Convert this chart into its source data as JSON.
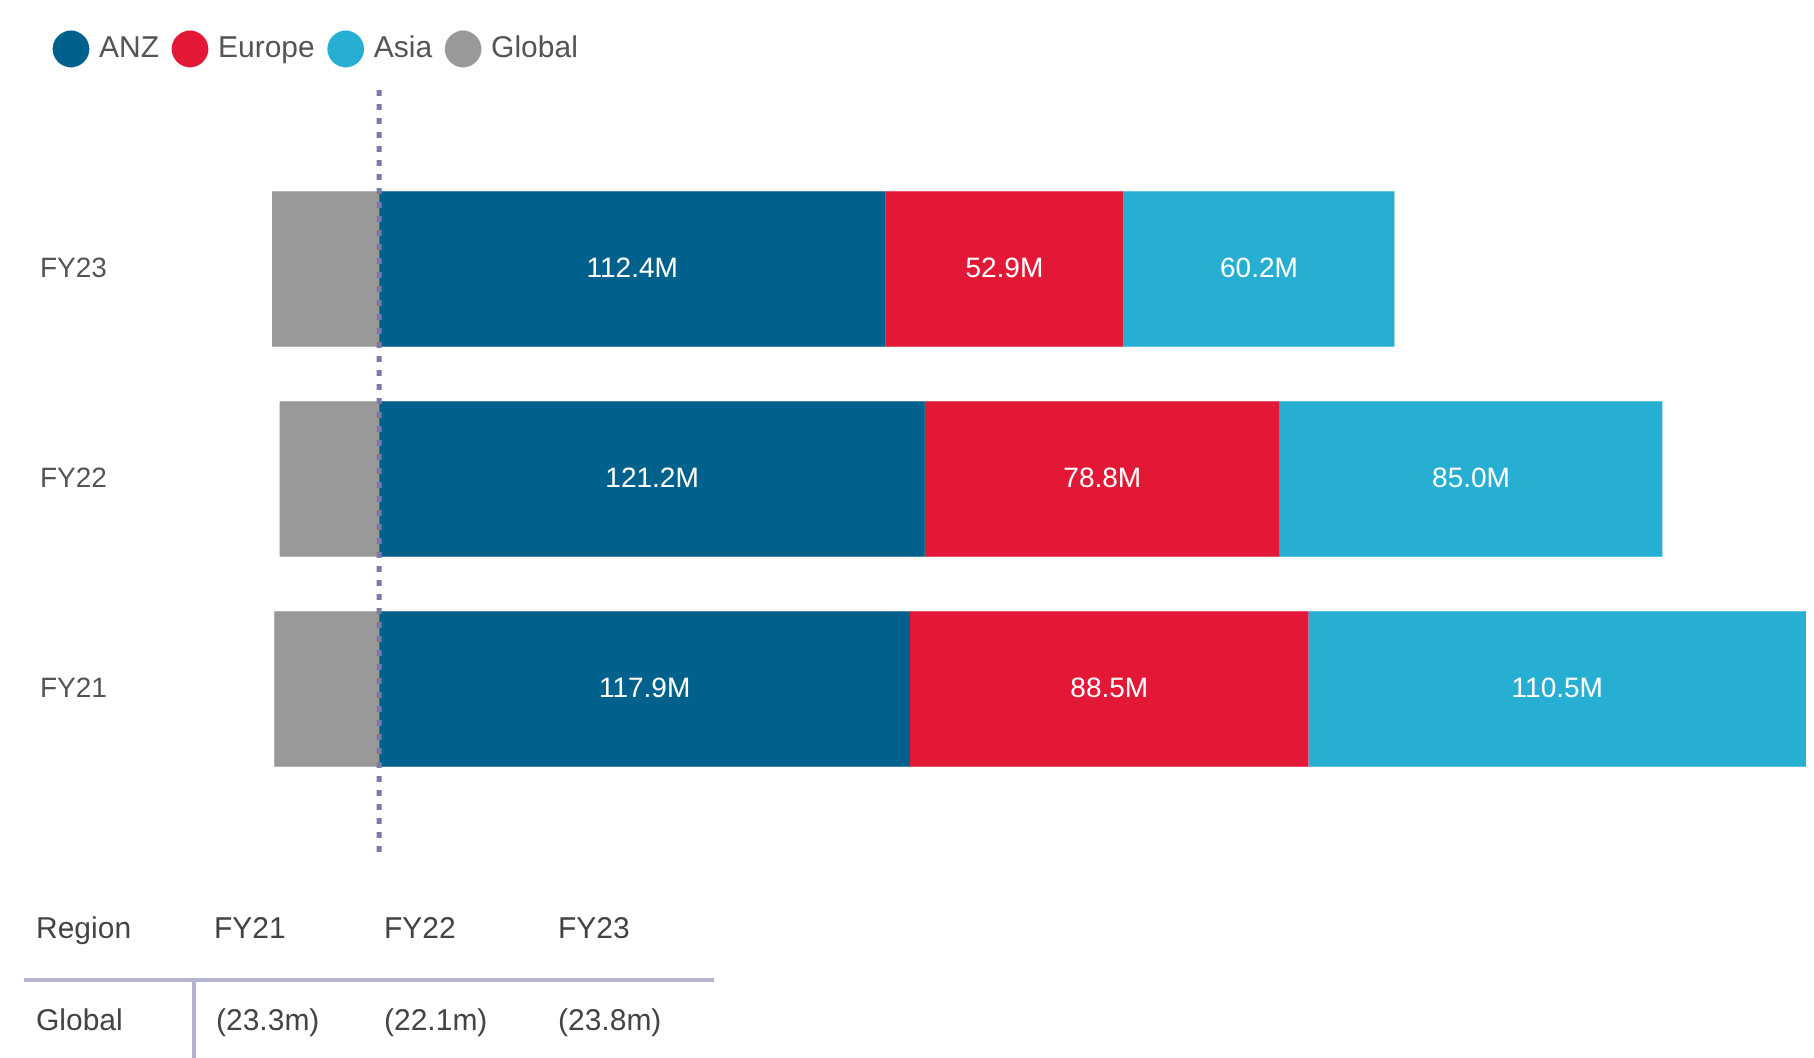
{
  "chart_data": {
    "type": "bar",
    "orientation": "horizontal",
    "stacked": true,
    "categories": [
      "FY23",
      "FY22",
      "FY21"
    ],
    "series": [
      {
        "name": "ANZ",
        "color": "#00618c",
        "values": [
          112.4,
          121.2,
          117.9
        ],
        "value_labels": [
          "112.4M",
          "121.2M",
          "117.9M"
        ]
      },
      {
        "name": "Europe",
        "color": "#e31837",
        "values": [
          52.9,
          78.8,
          88.5
        ],
        "value_labels": [
          "52.9M",
          "78.8M",
          "88.5M"
        ]
      },
      {
        "name": "Asia",
        "color": "#27afd3",
        "values": [
          60.2,
          85.0,
          110.5
        ],
        "value_labels": [
          "60.2M",
          "85.0M",
          "110.5M"
        ]
      },
      {
        "name": "Global",
        "color": "#999999",
        "values": [
          -23.8,
          -22.1,
          -23.3
        ]
      }
    ],
    "legend": "top left",
    "tick_labels": "y",
    "ref_lines": [
      {
        "axis": "x",
        "value": 0,
        "color": "#7b7bab",
        "line_style": "dotted"
      }
    ],
    "annotations": [
      "Region",
      "(23.3m)",
      "(22.1m)",
      "(23.8m)"
    ]
  }
}
